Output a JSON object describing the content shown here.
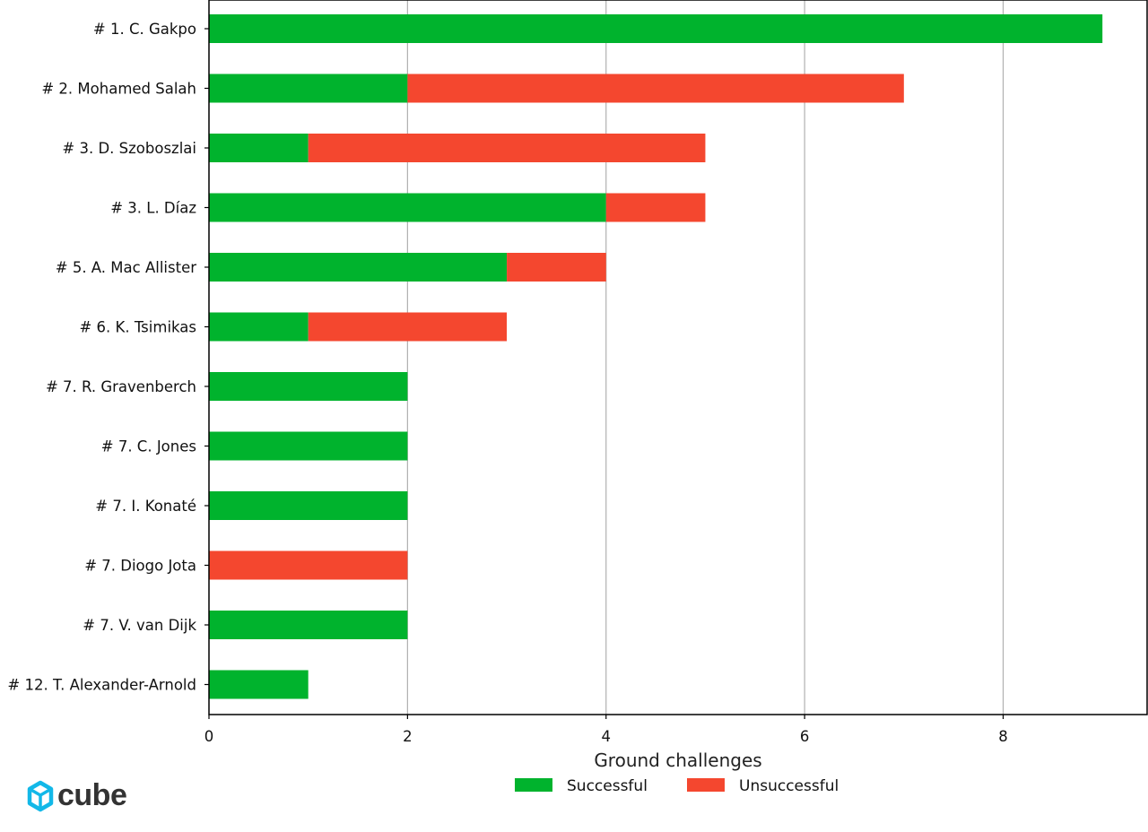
{
  "chart_data": {
    "type": "bar",
    "orientation": "horizontal",
    "stacked": true,
    "xlabel": "Ground challenges",
    "xlim": [
      0,
      9.45
    ],
    "xticks": [
      0,
      2,
      4,
      6,
      8
    ],
    "grid": "vertical",
    "legend_position": "bottom-center",
    "categories": [
      "# 1.  C. Gakpo",
      "# 2.  Mohamed Salah",
      "# 3.  D. Szoboszlai",
      "# 3.  L. Díaz",
      "# 5.  A. Mac Allister",
      "# 6.  K. Tsimikas",
      "# 7.  R. Gravenberch",
      "# 7.  C. Jones",
      "# 7.  I. Konaté",
      "# 7.  Diogo Jota",
      "# 7.  V. van Dijk",
      "# 12.  T. Alexander-Arnold"
    ],
    "series": [
      {
        "name": "Successful",
        "color": "#00b32d",
        "values": [
          9,
          2,
          1,
          4,
          3,
          1,
          2,
          2,
          2,
          0,
          2,
          1
        ]
      },
      {
        "name": "Unsuccessful",
        "color": "#f4472f",
        "values": [
          0,
          5,
          4,
          1,
          1,
          2,
          0,
          0,
          0,
          2,
          0,
          0
        ]
      }
    ]
  },
  "brand": {
    "name": "cube",
    "icon": "cube-logo-icon",
    "icon_color": "#12b8e8"
  }
}
